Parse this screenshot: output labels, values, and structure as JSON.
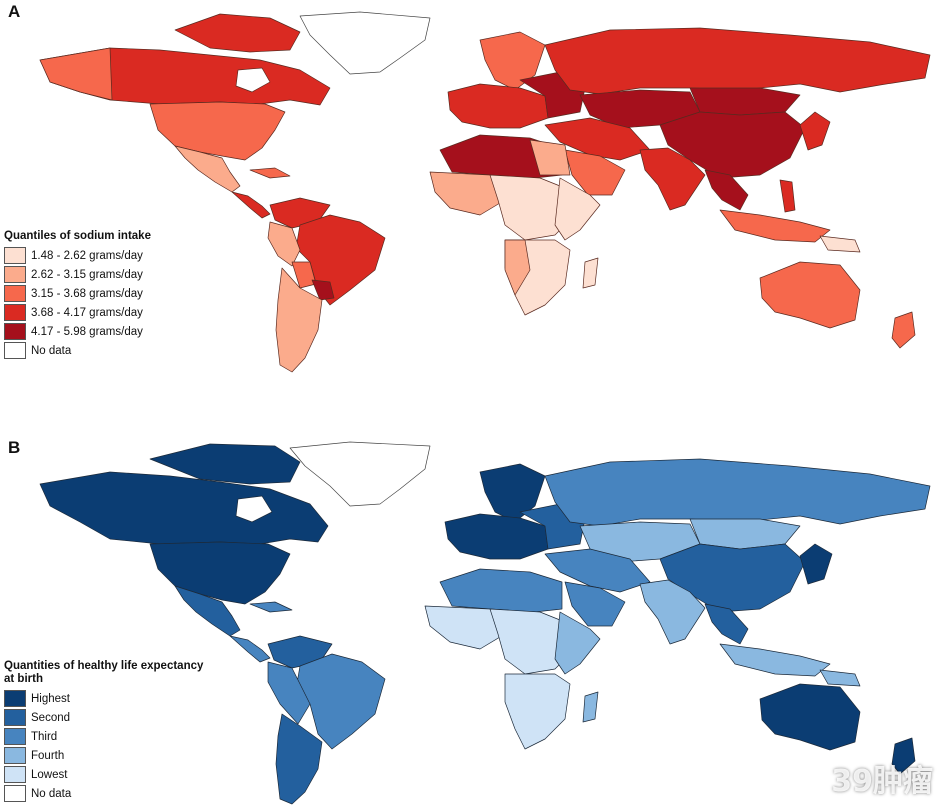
{
  "panel_a": {
    "letter": "A",
    "legend_title": "Quantiles of sodium intake",
    "legend": [
      {
        "label": "1.48 - 2.62 grams/day",
        "color": "#fde0d2"
      },
      {
        "label": "2.62 - 3.15 grams/day",
        "color": "#fbab8c"
      },
      {
        "label": "3.15 - 3.68 grams/day",
        "color": "#f6684c"
      },
      {
        "label": "3.68 - 4.17 grams/day",
        "color": "#da2a22"
      },
      {
        "label": "4.17 - 5.98 grams/day",
        "color": "#a5101c"
      },
      {
        "label": "No data",
        "color": "#ffffff"
      }
    ]
  },
  "panel_b": {
    "letter": "B",
    "legend_title_line1": "Quantities of healthy life expectancy",
    "legend_title_line2": "at birth",
    "legend": [
      {
        "label": "Highest",
        "color": "#0b3d73"
      },
      {
        "label": "Second",
        "color": "#23609e"
      },
      {
        "label": "Third",
        "color": "#4784bf"
      },
      {
        "label": "Fourth",
        "color": "#8ab8e0"
      },
      {
        "label": "Lowest",
        "color": "#cfe3f6"
      },
      {
        "label": "No data",
        "color": "#ffffff"
      }
    ]
  },
  "watermark": "39肿瘤"
}
